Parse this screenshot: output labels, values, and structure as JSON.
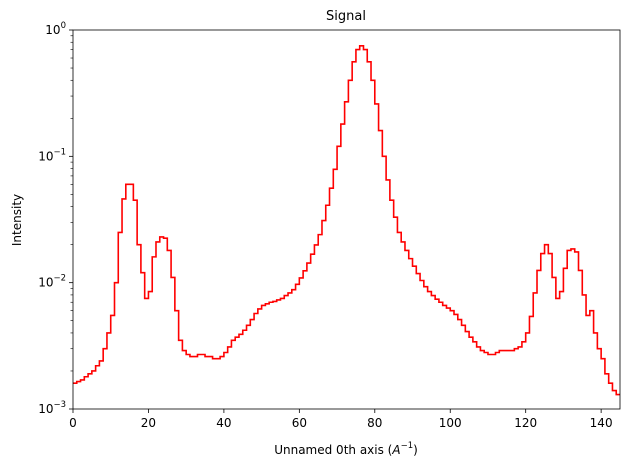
{
  "chart_data": {
    "type": "line",
    "step": true,
    "title": "Signal",
    "xlabel": "Unnamed 0th axis",
    "xlabel_unit": "A",
    "xlabel_unit_exp": "−1",
    "ylabel": "Intensity",
    "xlim": [
      0,
      145
    ],
    "ylim": [
      0.001,
      1
    ],
    "yscale": "log",
    "grid": false,
    "x_ticks": [
      "0",
      "20",
      "40",
      "60",
      "80",
      "100",
      "120",
      "140"
    ],
    "y_ticks": [
      {
        "base": "10",
        "exp": "−3"
      },
      {
        "base": "10",
        "exp": "−2"
      },
      {
        "base": "10",
        "exp": "−1"
      },
      {
        "base": "10",
        "exp": "0"
      }
    ],
    "series": [
      {
        "color": "#ff0000",
        "x": [
          0,
          1,
          2,
          3,
          4,
          5,
          6,
          7,
          8,
          9,
          10,
          11,
          12,
          13,
          14,
          15,
          16,
          17,
          18,
          19,
          20,
          21,
          22,
          23,
          24,
          25,
          26,
          27,
          28,
          29,
          30,
          31,
          32,
          33,
          34,
          35,
          36,
          37,
          38,
          39,
          40,
          41,
          42,
          43,
          44,
          45,
          46,
          47,
          48,
          49,
          50,
          51,
          52,
          53,
          54,
          55,
          56,
          57,
          58,
          59,
          60,
          61,
          62,
          63,
          64,
          65,
          66,
          67,
          68,
          69,
          70,
          71,
          72,
          73,
          74,
          75,
          76,
          77,
          78,
          79,
          80,
          81,
          82,
          83,
          84,
          85,
          86,
          87,
          88,
          89,
          90,
          91,
          92,
          93,
          94,
          95,
          96,
          97,
          98,
          99,
          100,
          101,
          102,
          103,
          104,
          105,
          106,
          107,
          108,
          109,
          110,
          111,
          112,
          113,
          114,
          115,
          116,
          117,
          118,
          119,
          120,
          121,
          122,
          123,
          124,
          125,
          126,
          127,
          128,
          129,
          130,
          131,
          132,
          133,
          134,
          135,
          136,
          137,
          138,
          139,
          140,
          141,
          142,
          143,
          144,
          145
        ],
        "y": [
          0.0016,
          0.00165,
          0.0017,
          0.0018,
          0.0019,
          0.002,
          0.0022,
          0.0024,
          0.003,
          0.004,
          0.0055,
          0.01,
          0.025,
          0.046,
          0.06,
          0.06,
          0.045,
          0.02,
          0.012,
          0.0075,
          0.0085,
          0.016,
          0.021,
          0.023,
          0.0225,
          0.018,
          0.011,
          0.006,
          0.0035,
          0.0029,
          0.0027,
          0.0026,
          0.0026,
          0.0027,
          0.0027,
          0.0026,
          0.0026,
          0.0025,
          0.0025,
          0.0026,
          0.0028,
          0.0031,
          0.0035,
          0.0037,
          0.0039,
          0.0042,
          0.0046,
          0.0051,
          0.0057,
          0.0062,
          0.0066,
          0.0068,
          0.007,
          0.0071,
          0.0073,
          0.0075,
          0.0079,
          0.0083,
          0.0088,
          0.0097,
          0.0109,
          0.0124,
          0.0143,
          0.0168,
          0.0199,
          0.024,
          0.031,
          0.041,
          0.056,
          0.079,
          0.12,
          0.18,
          0.27,
          0.4,
          0.56,
          0.7,
          0.75,
          0.7,
          0.56,
          0.4,
          0.26,
          0.16,
          0.1,
          0.065,
          0.045,
          0.033,
          0.025,
          0.021,
          0.018,
          0.0155,
          0.0135,
          0.0118,
          0.0104,
          0.0093,
          0.0085,
          0.0079,
          0.0074,
          0.007,
          0.0066,
          0.0063,
          0.006,
          0.0056,
          0.0051,
          0.0046,
          0.0041,
          0.0037,
          0.0034,
          0.0031,
          0.0029,
          0.0028,
          0.0027,
          0.0027,
          0.0028,
          0.0029,
          0.0029,
          0.0029,
          0.0029,
          0.003,
          0.0031,
          0.0034,
          0.004,
          0.0054,
          0.0083,
          0.0125,
          0.017,
          0.02,
          0.017,
          0.011,
          0.0075,
          0.0085,
          0.013,
          0.018,
          0.0185,
          0.0175,
          0.0125,
          0.008,
          0.0055,
          0.006,
          0.004,
          0.003,
          0.0025,
          0.0019,
          0.0016,
          0.0014,
          0.0013,
          0.0013
        ]
      }
    ]
  }
}
